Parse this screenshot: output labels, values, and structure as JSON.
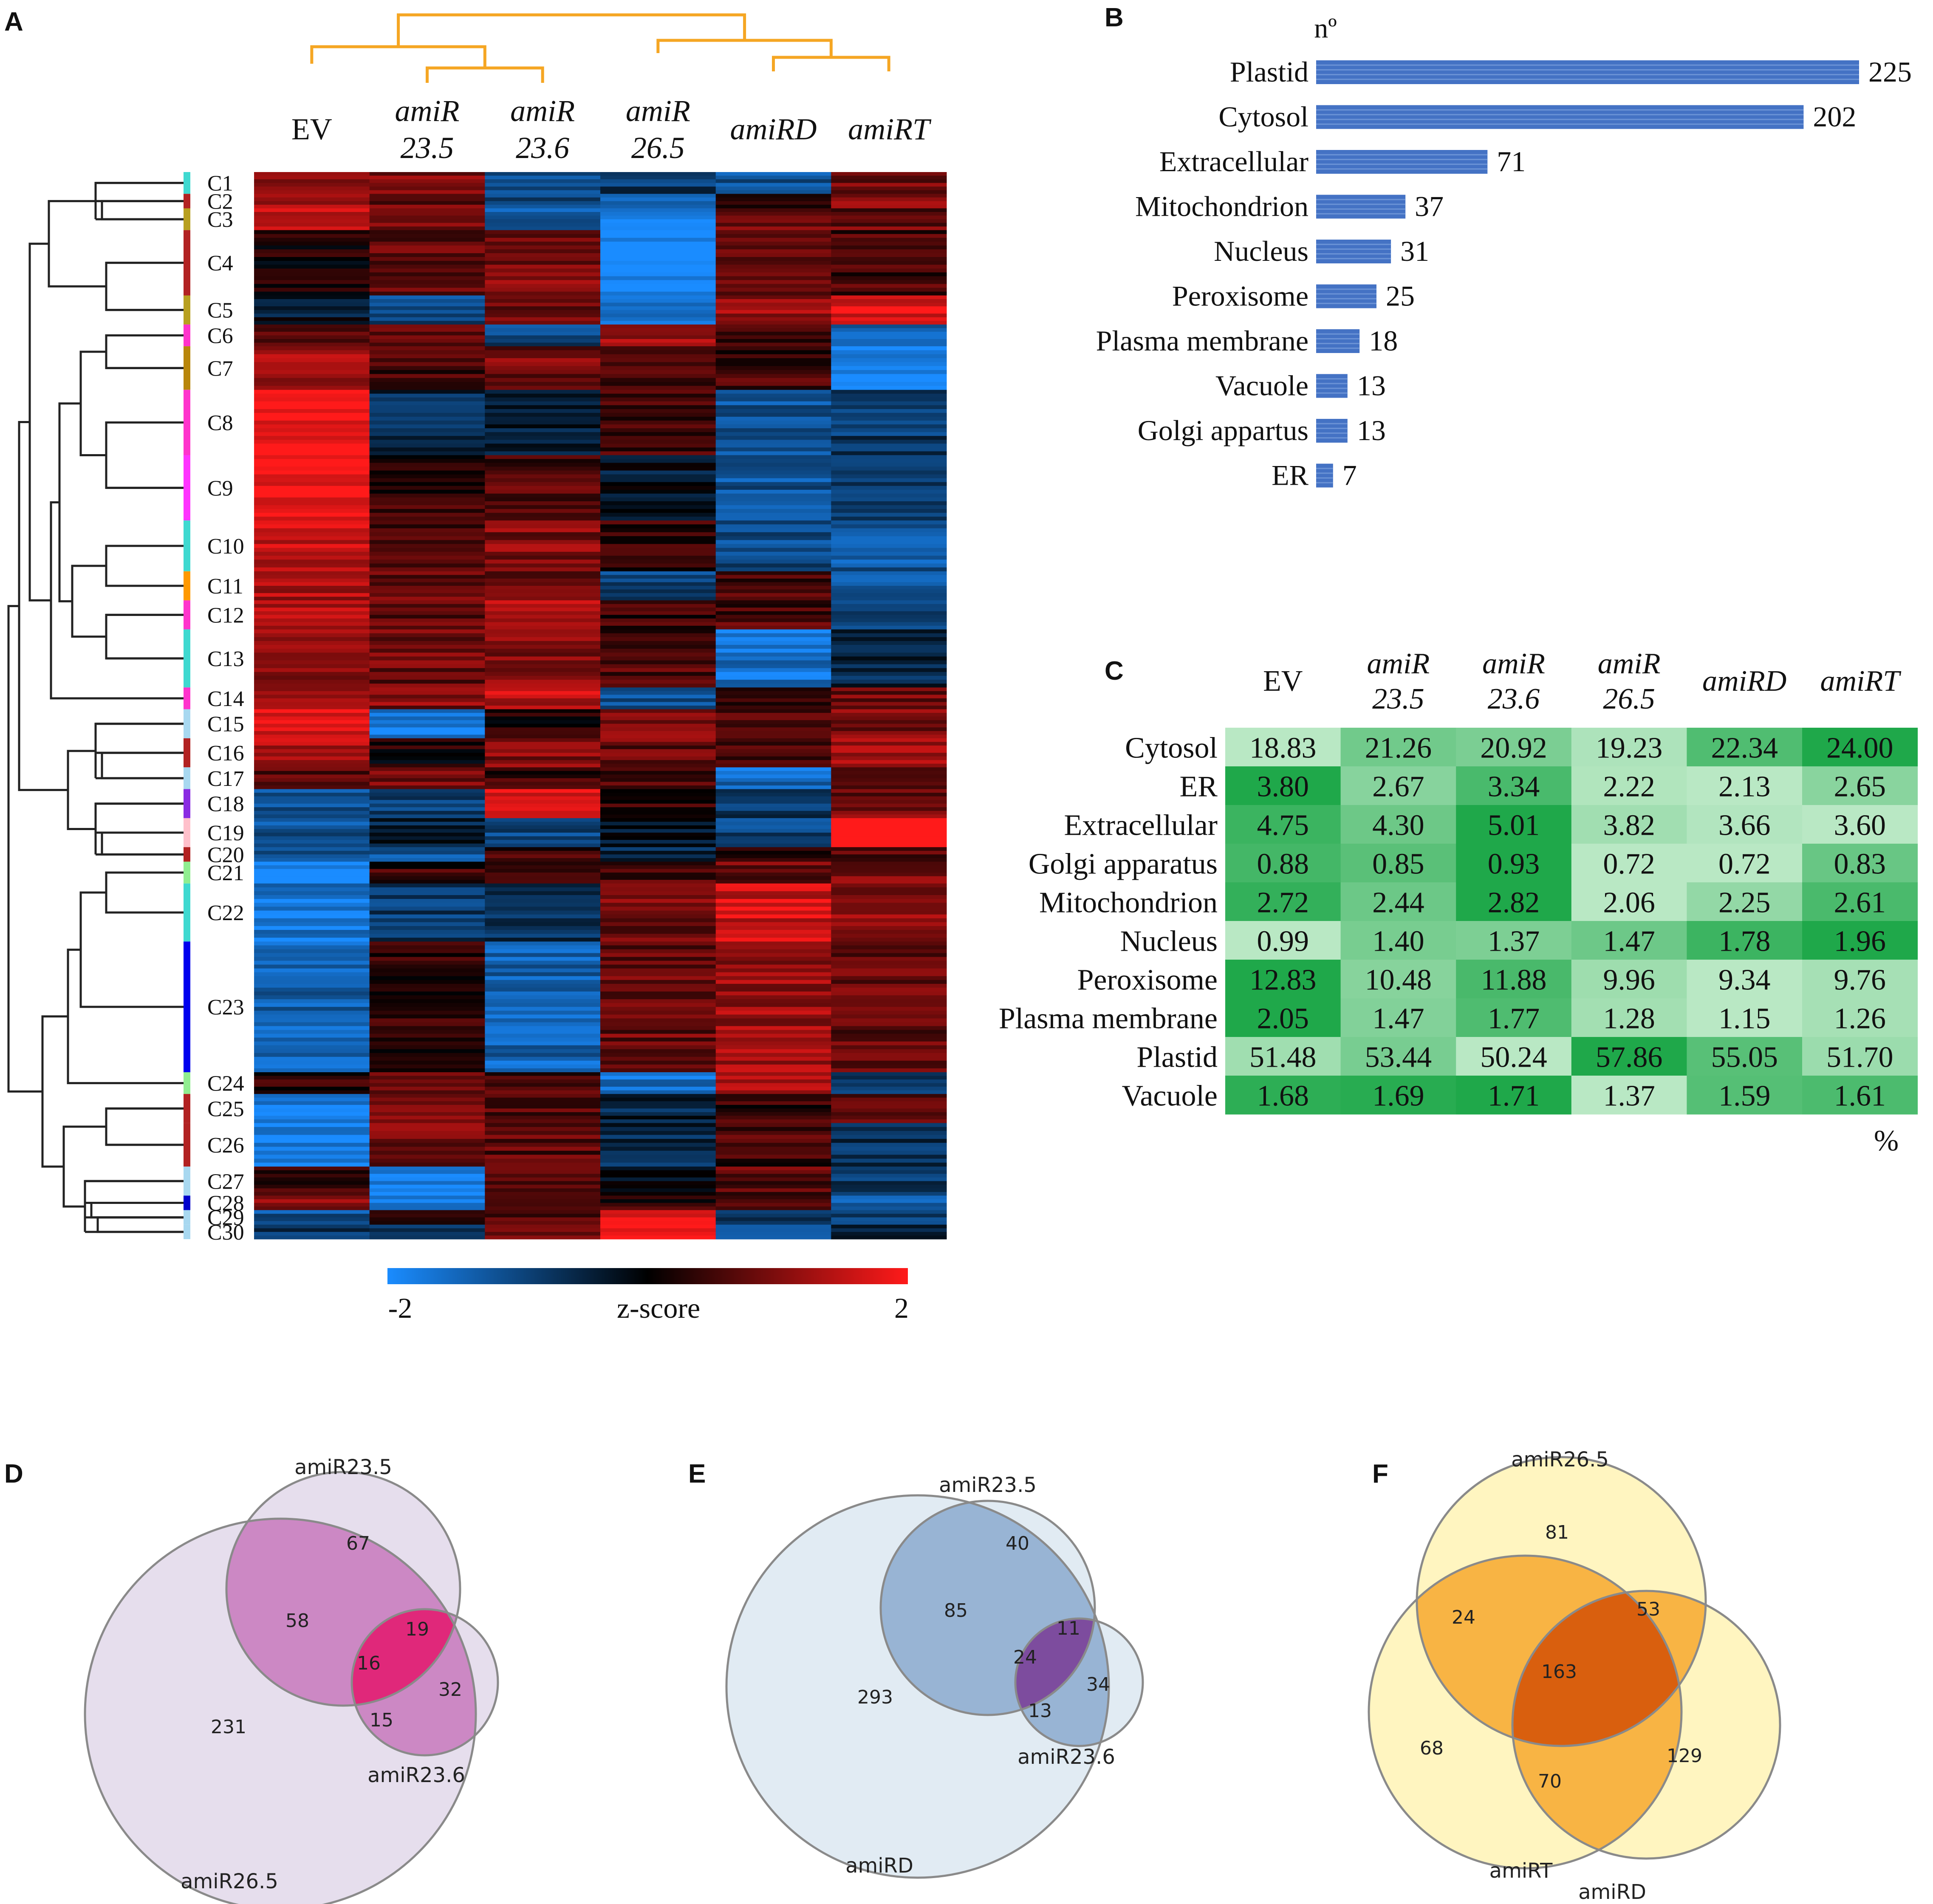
{
  "panels": {
    "A": "A",
    "B": "B",
    "C": "C",
    "D": "D",
    "E": "E",
    "F": "F"
  },
  "chart_data": [
    {
      "panel": "A",
      "type": "heatmap",
      "title": "",
      "columns": [
        {
          "line1": "EV",
          "line2": "",
          "italic": false
        },
        {
          "line1": "amiR",
          "line2": "23.5",
          "italic": true
        },
        {
          "line1": "amiR",
          "line2": "23.6",
          "italic": true
        },
        {
          "line1": "amiR",
          "line2": "26.5",
          "italic": true
        },
        {
          "line1": "amiRD",
          "line2": "",
          "italic": true
        },
        {
          "line1": "amiRT",
          "line2": "",
          "italic": true
        }
      ],
      "clusters": [
        {
          "label": "C1",
          "color": "#3fd9d0",
          "rows": 3,
          "z": [
            1.2,
            1.0,
            -1.0,
            -0.8,
            -1.2,
            0.8
          ]
        },
        {
          "label": "C2",
          "color": "#b22222",
          "rows": 2,
          "z": [
            1.3,
            0.8,
            -1.0,
            -1.5,
            0.5,
            1.2
          ]
        },
        {
          "label": "C3",
          "color": "#b8a020",
          "rows": 3,
          "z": [
            1.4,
            1.0,
            -1.4,
            -1.8,
            0.8,
            0.8
          ]
        },
        {
          "label": "C4",
          "color": "#b22222",
          "rows": 9,
          "z": [
            0.2,
            0.8,
            1.0,
            -2.0,
            0.6,
            0.5
          ]
        },
        {
          "label": "C5",
          "color": "#b8a020",
          "rows": 4,
          "z": [
            -0.3,
            -1.0,
            0.8,
            -1.4,
            1.2,
            1.8
          ]
        },
        {
          "label": "C6",
          "color": "#ff33cc",
          "rows": 3,
          "z": [
            0.7,
            0.6,
            -1.0,
            1.2,
            0.5,
            -1.5
          ]
        },
        {
          "label": "C7",
          "color": "#b8860b",
          "rows": 6,
          "z": [
            1.3,
            0.5,
            0.9,
            0.7,
            0.5,
            -2.0
          ]
        },
        {
          "label": "C8",
          "color": "#ff33cc",
          "rows": 9,
          "z": [
            2.0,
            -0.6,
            -0.4,
            0.6,
            -1.2,
            -0.8
          ]
        },
        {
          "label": "C9",
          "color": "#ff33ff",
          "rows": 9,
          "z": [
            2.0,
            0.4,
            0.6,
            -0.3,
            -1.2,
            -0.7
          ]
        },
        {
          "label": "C10",
          "color": "#3fd9d0",
          "rows": 7,
          "z": [
            1.5,
            0.5,
            1.0,
            0.4,
            -1.0,
            -1.2
          ]
        },
        {
          "label": "C11",
          "color": "#ff9900",
          "rows": 4,
          "z": [
            1.3,
            0.8,
            0.8,
            -1.0,
            0.6,
            -1.2
          ]
        },
        {
          "label": "C12",
          "color": "#ff33cc",
          "rows": 4,
          "z": [
            1.4,
            0.7,
            1.4,
            0.4,
            0.6,
            -0.8
          ]
        },
        {
          "label": "C13",
          "color": "#3fd9d0",
          "rows": 8,
          "z": [
            1.2,
            0.8,
            1.0,
            0.6,
            -1.6,
            -0.5
          ]
        },
        {
          "label": "C14",
          "color": "#ff33cc",
          "rows": 3,
          "z": [
            1.0,
            1.0,
            1.5,
            -1.2,
            0.6,
            0.9
          ]
        },
        {
          "label": "C15",
          "color": "#a8d8f0",
          "rows": 4,
          "z": [
            1.6,
            -1.8,
            0.3,
            0.9,
            0.7,
            1.0
          ]
        },
        {
          "label": "C16",
          "color": "#b22222",
          "rows": 4,
          "z": [
            1.4,
            0.2,
            1.0,
            0.8,
            0.5,
            1.3
          ]
        },
        {
          "label": "C17",
          "color": "#a8d8f0",
          "rows": 3,
          "z": [
            0.6,
            0.9,
            0.5,
            0.6,
            -1.5,
            0.9
          ]
        },
        {
          "label": "C18",
          "color": "#8a2be2",
          "rows": 4,
          "z": [
            -1.2,
            -1.0,
            1.6,
            0.4,
            -0.8,
            0.9
          ]
        },
        {
          "label": "C19",
          "color": "#ffc0cb",
          "rows": 4,
          "z": [
            -1.2,
            -0.4,
            -1.0,
            -0.2,
            -1.0,
            2.0
          ]
        },
        {
          "label": "C20",
          "color": "#b22222",
          "rows": 2,
          "z": [
            -1.0,
            -1.2,
            0.5,
            -0.5,
            0.4,
            0.6
          ]
        },
        {
          "label": "C21",
          "color": "#90ee90",
          "rows": 3,
          "z": [
            -2.0,
            0.4,
            0.5,
            0.6,
            0.8,
            0.9
          ]
        },
        {
          "label": "C22",
          "color": "#3fd9d0",
          "rows": 8,
          "z": [
            -1.7,
            -0.8,
            -0.6,
            0.9,
            1.6,
            1.1
          ]
        },
        {
          "label": "C23",
          "color": "#0000ee",
          "rows": 18,
          "z": [
            -1.4,
            0.3,
            -1.4,
            0.8,
            1.2,
            0.8
          ]
        },
        {
          "label": "C24",
          "color": "#90ee90",
          "rows": 3,
          "z": [
            0.4,
            0.8,
            0.5,
            -1.6,
            1.5,
            -0.7
          ]
        },
        {
          "label": "C25",
          "color": "#b22222",
          "rows": 4,
          "z": [
            -1.8,
            0.9,
            0.7,
            -0.5,
            0.4,
            0.6
          ]
        },
        {
          "label": "C26",
          "color": "#b22222",
          "rows": 6,
          "z": [
            -1.8,
            0.9,
            0.7,
            -0.6,
            0.5,
            -0.7
          ]
        },
        {
          "label": "C27",
          "color": "#a8d8f0",
          "rows": 4,
          "z": [
            0.5,
            -1.9,
            0.7,
            -0.3,
            0.7,
            -0.7
          ]
        },
        {
          "label": "C28",
          "color": "#0000cc",
          "rows": 2,
          "z": [
            1.2,
            -1.6,
            0.7,
            0.3,
            0.6,
            -1.4
          ]
        },
        {
          "label": "C29",
          "color": "#a8d8f0",
          "rows": 2,
          "z": [
            -1.2,
            0.6,
            0.6,
            2.0,
            -0.5,
            -0.8
          ]
        },
        {
          "label": "C30",
          "color": "#a8d8f0",
          "rows": 2,
          "z": [
            -0.8,
            -0.8,
            1.0,
            1.8,
            -1.6,
            -0.5
          ]
        }
      ],
      "colorbar": {
        "min_label": "-2",
        "max_label": "2",
        "label": "z-score",
        "min": -2,
        "max": 2,
        "low_color": "#1a8cff",
        "mid_color": "#000000",
        "high_color": "#ff1a1a"
      },
      "dendrogram_color": "#f5a623"
    },
    {
      "panel": "B",
      "type": "bar",
      "orientation": "horizontal",
      "axis_title": "nº",
      "categories": [
        "Plastid",
        "Cytosol",
        "Extracellular",
        "Mitochondrion",
        "Nucleus",
        "Peroxisome",
        "Plasma membrane",
        "Vacuole",
        "Golgi appartus",
        "ER"
      ],
      "values": [
        225,
        202,
        71,
        37,
        31,
        25,
        18,
        13,
        13,
        7
      ],
      "value_labels": [
        "225",
        "202",
        "71",
        "37",
        "31",
        "25",
        "18",
        "13",
        "13",
        "7"
      ],
      "color": "#4472c4"
    },
    {
      "panel": "C",
      "type": "table",
      "columns": [
        {
          "line1": "EV",
          "line2": "",
          "italic": false
        },
        {
          "line1": "amiR",
          "line2": "23.5",
          "italic": true
        },
        {
          "line1": "amiR",
          "line2": "23.6",
          "italic": true
        },
        {
          "line1": "amiR",
          "line2": "26.5",
          "italic": true
        },
        {
          "line1": "amiRD",
          "line2": "",
          "italic": true
        },
        {
          "line1": "amiRT",
          "line2": "",
          "italic": true
        }
      ],
      "rows": [
        {
          "label": "Cytosol",
          "values": [
            "18.83",
            "21.26",
            "20.92",
            "19.23",
            "22.34",
            "24.00"
          ]
        },
        {
          "label": "ER",
          "values": [
            "3.80",
            "2.67",
            "3.34",
            "2.22",
            "2.13",
            "2.65"
          ]
        },
        {
          "label": "Extracellular",
          "values": [
            "4.75",
            "4.30",
            "5.01",
            "3.82",
            "3.66",
            "3.60"
          ]
        },
        {
          "label": "Golgi apparatus",
          "values": [
            "0.88",
            "0.85",
            "0.93",
            "0.72",
            "0.72",
            "0.83"
          ]
        },
        {
          "label": "Mitochondrion",
          "values": [
            "2.72",
            "2.44",
            "2.82",
            "2.06",
            "2.25",
            "2.61"
          ]
        },
        {
          "label": "Nucleus",
          "values": [
            "0.99",
            "1.40",
            "1.37",
            "1.47",
            "1.78",
            "1.96"
          ]
        },
        {
          "label": "Peroxisome",
          "values": [
            "12.83",
            "10.48",
            "11.88",
            "9.96",
            "9.34",
            "9.76"
          ]
        },
        {
          "label": "Plasma membrane",
          "values": [
            "2.05",
            "1.47",
            "1.77",
            "1.28",
            "1.15",
            "1.26"
          ]
        },
        {
          "label": "Plastid",
          "values": [
            "51.48",
            "53.44",
            "50.24",
            "57.86",
            "55.05",
            "51.70"
          ]
        },
        {
          "label": "Vacuole",
          "values": [
            "1.68",
            "1.69",
            "1.71",
            "1.37",
            "1.59",
            "1.61"
          ]
        }
      ],
      "unit_label": "%",
      "low_color": "#b9e8c4",
      "high_color": "#1fa84a"
    },
    {
      "panel": "D",
      "type": "venn",
      "sets": [
        "amiR23.5",
        "amiR26.5",
        "amiR23.6"
      ],
      "regions": {
        "only_23.5": "67",
        "only_26.5": "231",
        "only_23.6": "32",
        "23.5_26.5": "58",
        "23.5_23.6": "19",
        "26.5_23.6": "15",
        "all": "16"
      },
      "base_color": "#e2d8ea",
      "pair_color": "#cc88c4",
      "center_color": "#e0287a"
    },
    {
      "panel": "E",
      "type": "venn",
      "sets": [
        "amiR23.5",
        "amiRD",
        "amiR23.6"
      ],
      "regions": {
        "only_23.5": "40",
        "only_D": "293",
        "only_23.6": "34",
        "23.5_D": "85",
        "23.5_23.6": "11",
        "D_23.6": "13",
        "all": "24"
      },
      "base_color": "#dce8f1",
      "pair_color": "#98b4d4",
      "center_color": "#7d4c9e"
    },
    {
      "panel": "F",
      "type": "venn",
      "sets": [
        "amiR26.5",
        "amiRT",
        "amiRD"
      ],
      "regions": {
        "only_26.5": "81",
        "only_T": "68",
        "only_D": "129",
        "26.5_T": "24",
        "26.5_D": "53",
        "T_D": "70",
        "all": "163"
      },
      "base_color": "#fff3b5",
      "pair_color": "#f8b444",
      "center_color": "#d95f0e"
    }
  ]
}
